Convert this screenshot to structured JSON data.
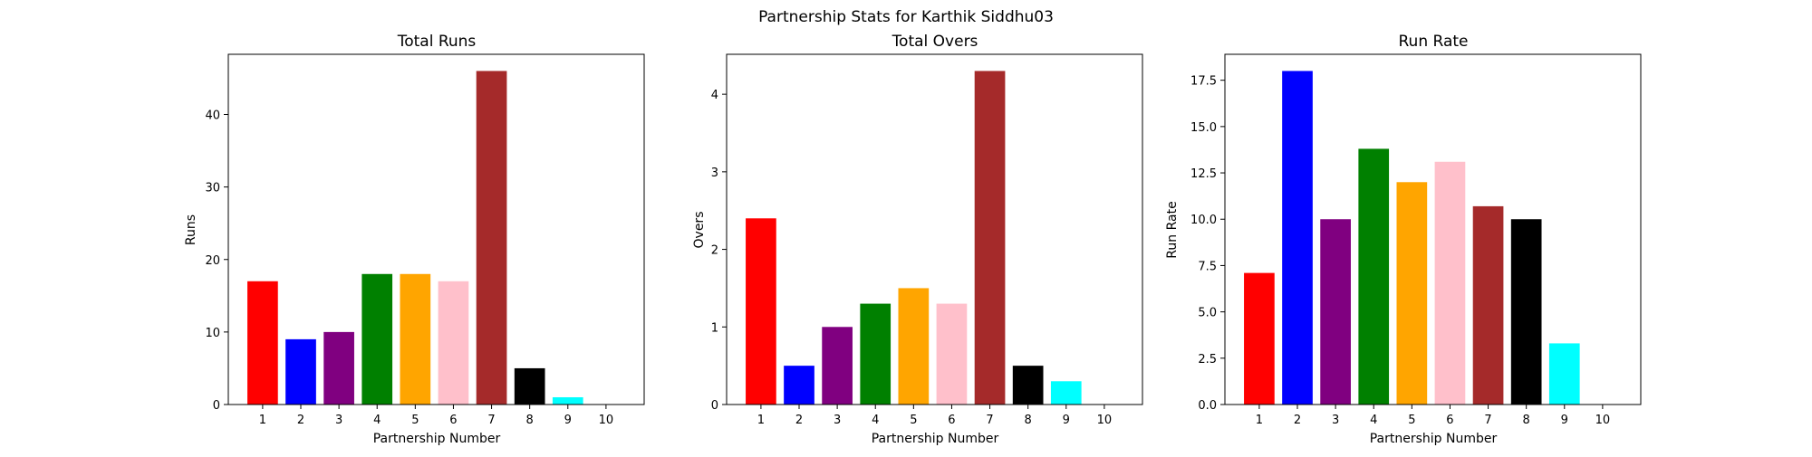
{
  "figure_title": "Partnership Stats for Karthik Siddhu03",
  "chart_data": [
    {
      "type": "bar",
      "title": "Total Runs",
      "xlabel": "Partnership Number",
      "ylabel": "Runs",
      "categories": [
        "1",
        "2",
        "3",
        "4",
        "5",
        "6",
        "7",
        "8",
        "9",
        "10"
      ],
      "values": [
        17,
        9,
        10,
        18,
        18,
        17,
        46,
        5,
        1,
        0
      ],
      "colors": [
        "#ff0000",
        "#0000ff",
        "#800080",
        "#008000",
        "#ffa500",
        "#ffc0cb",
        "#a52a2a",
        "#000000",
        "#00ffff",
        "#ffffff"
      ],
      "ylim": [
        0,
        48.3
      ],
      "yticks": [
        0,
        10,
        20,
        30,
        40
      ],
      "ytick_labels": [
        "0",
        "10",
        "20",
        "30",
        "40"
      ],
      "xlim": [
        0.1,
        11
      ],
      "grid": false
    },
    {
      "type": "bar",
      "title": "Total Overs",
      "xlabel": "Partnership Number",
      "ylabel": "Overs",
      "categories": [
        "1",
        "2",
        "3",
        "4",
        "5",
        "6",
        "7",
        "8",
        "9",
        "10"
      ],
      "values": [
        2.4,
        0.5,
        1.0,
        1.3,
        1.5,
        1.3,
        4.3,
        0.5,
        0.3,
        0
      ],
      "colors": [
        "#ff0000",
        "#0000ff",
        "#800080",
        "#008000",
        "#ffa500",
        "#ffc0cb",
        "#a52a2a",
        "#000000",
        "#00ffff",
        "#ffffff"
      ],
      "ylim": [
        0,
        4.515
      ],
      "yticks": [
        0,
        1,
        2,
        3,
        4
      ],
      "ytick_labels": [
        "0",
        "1",
        "2",
        "3",
        "4"
      ],
      "xlim": [
        0.1,
        11
      ],
      "grid": false
    },
    {
      "type": "bar",
      "title": "Run Rate",
      "xlabel": "Partnership Number",
      "ylabel": "Run Rate",
      "categories": [
        "1",
        "2",
        "3",
        "4",
        "5",
        "6",
        "7",
        "8",
        "9",
        "10"
      ],
      "values": [
        7.1,
        18.0,
        10.0,
        13.8,
        12.0,
        13.1,
        10.7,
        10.0,
        3.3,
        0
      ],
      "colors": [
        "#ff0000",
        "#0000ff",
        "#800080",
        "#008000",
        "#ffa500",
        "#ffc0cb",
        "#a52a2a",
        "#000000",
        "#00ffff",
        "#ffffff"
      ],
      "ylim": [
        0,
        18.9
      ],
      "yticks": [
        0,
        2.5,
        5,
        7.5,
        10,
        12.5,
        15,
        17.5
      ],
      "ytick_labels": [
        "0.0",
        "2.5",
        "5.0",
        "7.5",
        "10.0",
        "12.5",
        "15.0",
        "17.5"
      ],
      "xlim": [
        0.1,
        11
      ],
      "grid": false
    }
  ]
}
